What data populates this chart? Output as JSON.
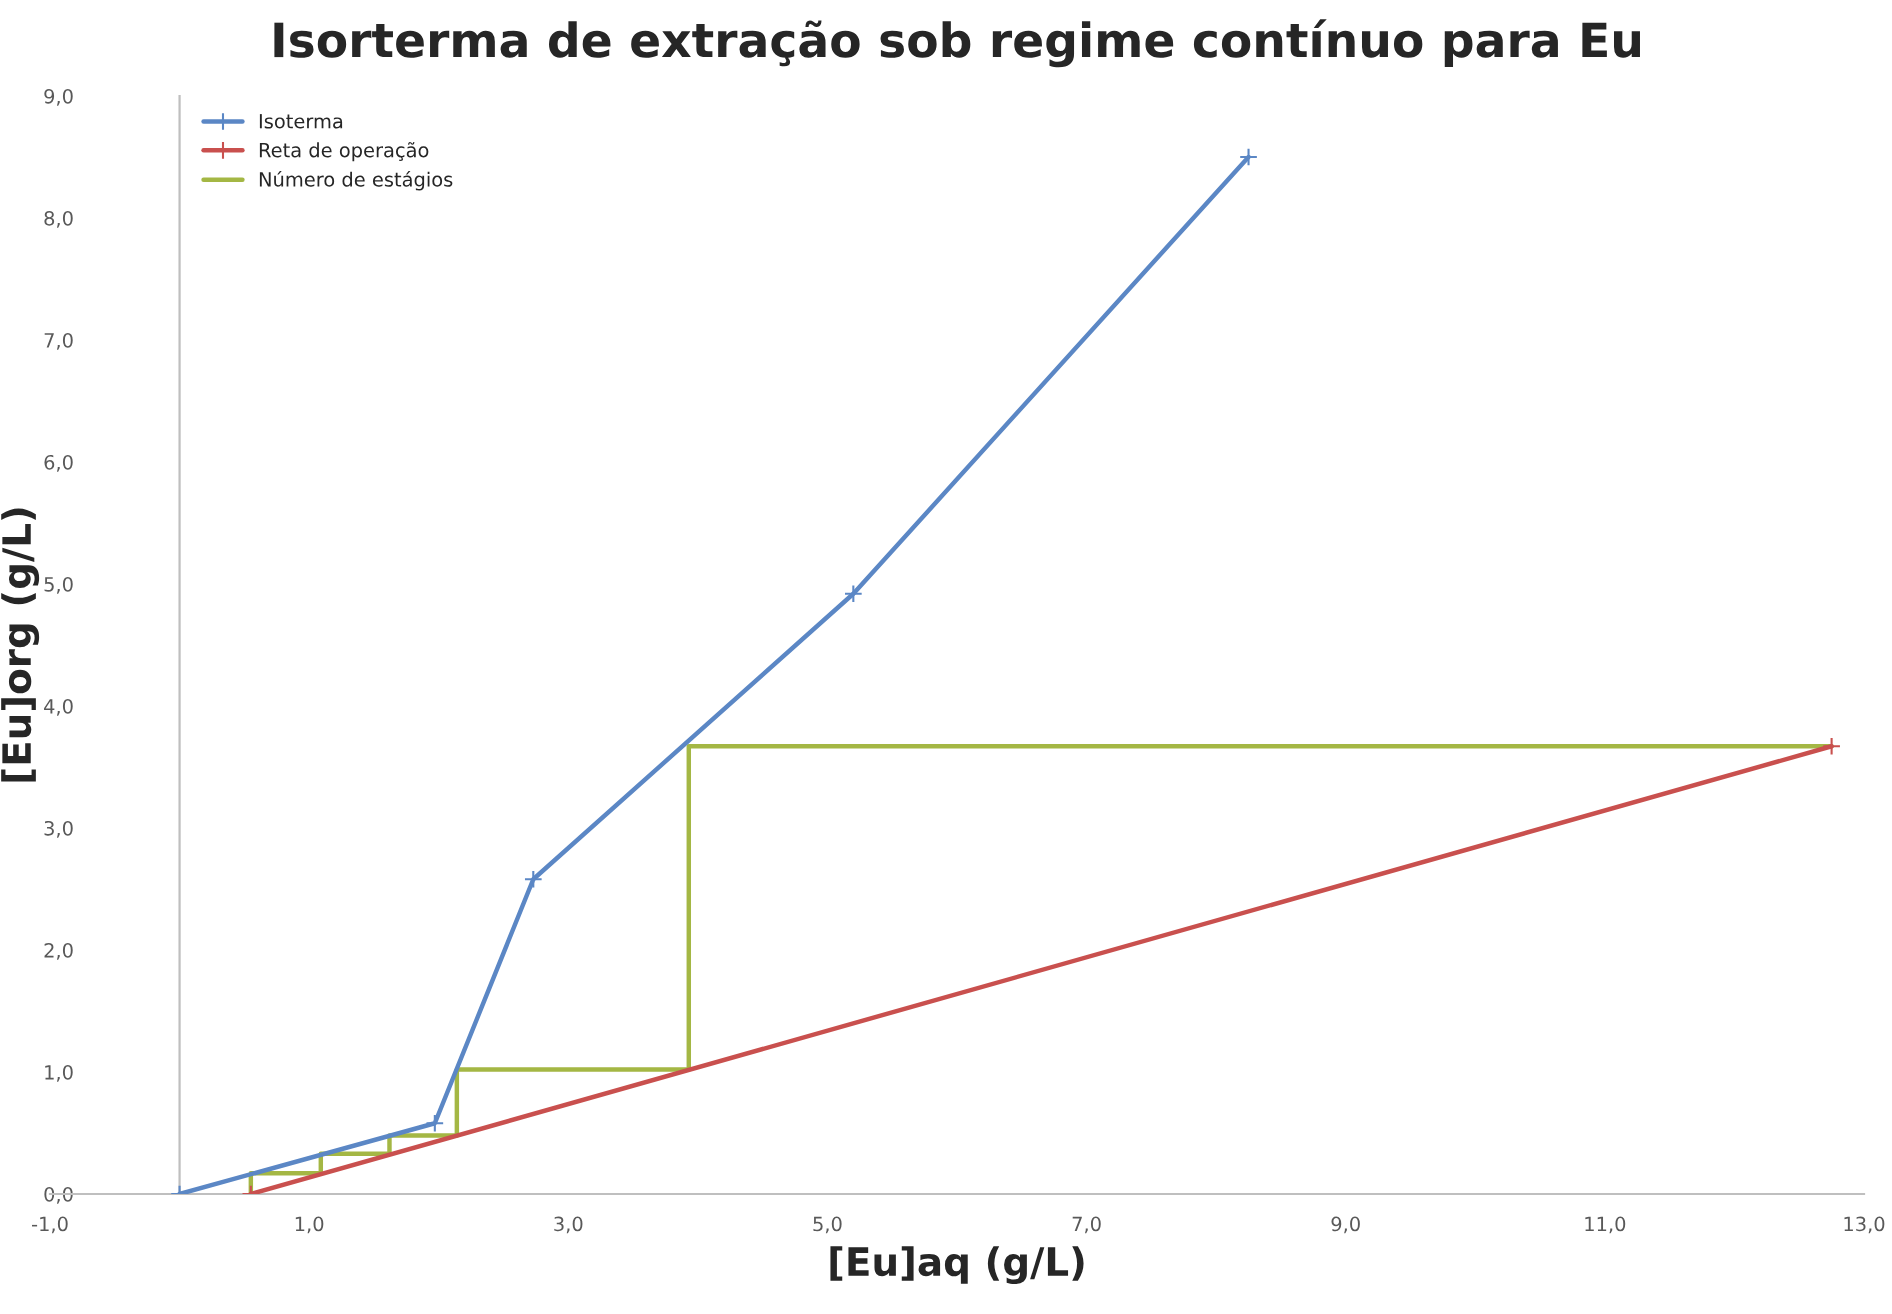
{
  "chart_data": {
    "type": "line",
    "title": "Isorterma de extração sob regime contínuo para Eu",
    "xlabel": "[Eu]aq (g/L)",
    "ylabel": "[Eu]org (g/L)",
    "series": [
      {
        "name": "Isoterma",
        "color": "#5b87c5",
        "marker": "cross",
        "x": [
          0,
          1.97,
          2.73,
          5.2,
          8.25
        ],
        "values": [
          0,
          0.58,
          2.58,
          4.92,
          8.5
        ]
      },
      {
        "name": "Reta de operação",
        "color": "#c9504e",
        "marker": "cross",
        "x": [
          0.55,
          12.75
        ],
        "values": [
          0,
          3.67
        ]
      },
      {
        "name": "Número de estágios",
        "color": "#a4b744",
        "marker": "none",
        "x": [
          12.75,
          3.93,
          3.93,
          2.14,
          2.14,
          1.62,
          1.62,
          1.09,
          1.09,
          0.55,
          0.55
        ],
        "values": [
          3.67,
          3.67,
          1.02,
          1.02,
          0.48,
          0.48,
          0.33,
          0.33,
          0.17,
          0.17,
          0
        ]
      }
    ],
    "xlim": [
      -1,
      13
    ],
    "ylim": [
      0,
      9
    ],
    "xticks": [
      {
        "value": -1,
        "label": "-1,0"
      },
      {
        "value": 1,
        "label": "1,0"
      },
      {
        "value": 3,
        "label": "3,0"
      },
      {
        "value": 5,
        "label": "5,0"
      },
      {
        "value": 7,
        "label": "7,0"
      },
      {
        "value": 9,
        "label": "9,0"
      },
      {
        "value": 11,
        "label": "11,0"
      },
      {
        "value": 13,
        "label": "13,0"
      }
    ],
    "yticks": [
      {
        "value": 0,
        "label": "0,0"
      },
      {
        "value": 1,
        "label": "1,0"
      },
      {
        "value": 2,
        "label": "2,0"
      },
      {
        "value": 3,
        "label": "3,0"
      },
      {
        "value": 4,
        "label": "4,0"
      },
      {
        "value": 5,
        "label": "5,0"
      },
      {
        "value": 6,
        "label": "6,0"
      },
      {
        "value": 7,
        "label": "7,0"
      },
      {
        "value": 8,
        "label": "8,0"
      },
      {
        "value": 9,
        "label": "9,0"
      }
    ],
    "grid": false,
    "legend": "top left",
    "line_style": "solid"
  }
}
